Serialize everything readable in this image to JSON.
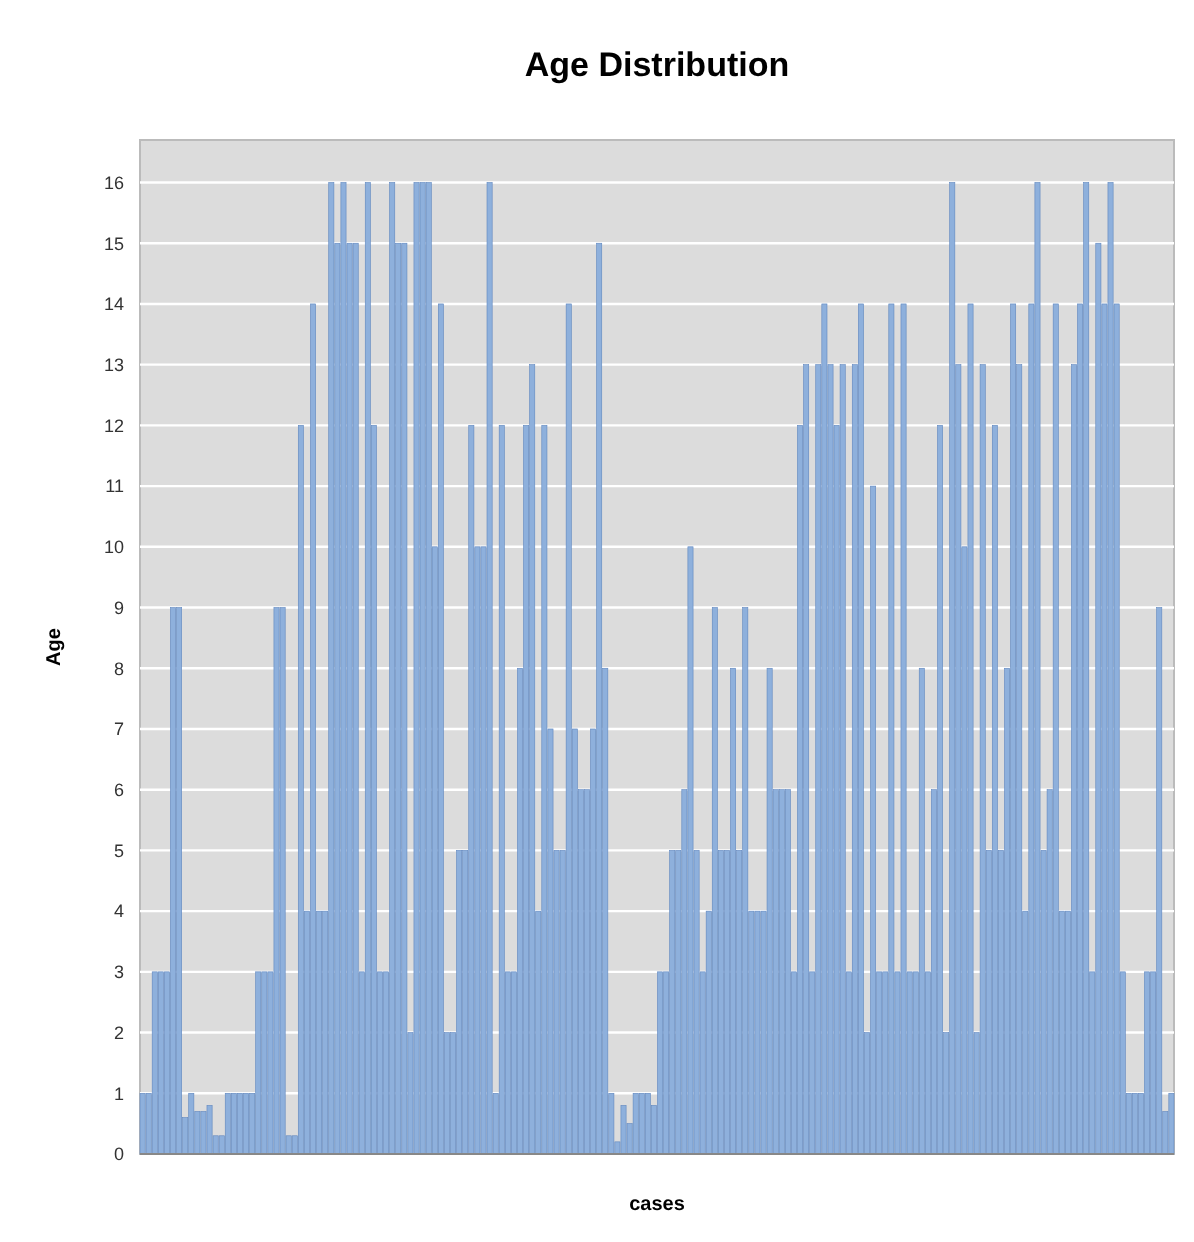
{
  "chart_data": {
    "type": "bar",
    "title": "Age Distribution",
    "xlabel": "cases",
    "ylabel": "Age",
    "categories": [
      null,
      null,
      null,
      null,
      null,
      null,
      null,
      null,
      null,
      null,
      null,
      null,
      null,
      null,
      null,
      null,
      null,
      null,
      null,
      null,
      null,
      null,
      null,
      null,
      null,
      null,
      null,
      null,
      null,
      null,
      null,
      null,
      null,
      null,
      null,
      null,
      null,
      null,
      null,
      null,
      null,
      null,
      null,
      null,
      null,
      null,
      null,
      null,
      null,
      null,
      null,
      null,
      null,
      null,
      null,
      null,
      null,
      null,
      null,
      null,
      null,
      null,
      null,
      null,
      null,
      null,
      null,
      null,
      null,
      null,
      null,
      null,
      null,
      null,
      null,
      null,
      null,
      null,
      null,
      null,
      null,
      null,
      null,
      null,
      null,
      null,
      null,
      null,
      null,
      null,
      null,
      null,
      null,
      null,
      null,
      null,
      null,
      null,
      null,
      null,
      null,
      null,
      null,
      null,
      null,
      null,
      null,
      null,
      null,
      null,
      null,
      null,
      null,
      null,
      null,
      null,
      null,
      null,
      null,
      null,
      null,
      null,
      null,
      null,
      null,
      null,
      null,
      null,
      null,
      null,
      null,
      null,
      null,
      null,
      null,
      null,
      null,
      null,
      null,
      null,
      null,
      null,
      null,
      null,
      null,
      null,
      null,
      null,
      null,
      null,
      null,
      null,
      null,
      null,
      null,
      null,
      null,
      null,
      null,
      null,
      null,
      null,
      null,
      null,
      null,
      null,
      null,
      null,
      null,
      null
    ],
    "values": [
      1,
      1,
      3,
      3,
      3,
      9,
      9,
      0.6,
      1,
      0.7,
      0.7,
      0.8,
      0.3,
      0.3,
      1,
      1,
      1,
      1,
      1,
      3,
      3,
      3,
      9,
      9,
      0.3,
      0.3,
      12,
      4,
      14,
      4,
      4,
      16,
      15,
      16,
      15,
      15,
      3,
      16,
      12,
      3,
      3,
      16,
      15,
      15,
      2,
      16,
      16,
      16,
      10,
      14,
      2,
      2,
      5,
      5,
      12,
      10,
      10,
      16,
      1,
      12,
      3,
      3,
      8,
      12,
      13,
      4,
      12,
      7,
      5,
      5,
      14,
      7,
      6,
      6,
      7,
      15,
      8,
      1,
      0.2,
      0.8,
      0.5,
      1,
      1,
      1,
      0.8,
      3,
      3,
      5,
      5,
      6,
      10,
      5,
      3,
      4,
      9,
      5,
      5,
      8,
      5,
      9,
      4,
      4,
      4,
      8,
      6,
      6,
      6,
      3,
      12,
      13,
      3,
      13,
      14,
      13,
      12,
      13,
      3,
      13,
      14,
      2,
      11,
      3,
      3,
      14,
      3,
      14,
      3,
      3,
      8,
      3,
      6,
      12,
      2,
      16,
      13,
      10,
      14,
      2,
      13,
      5,
      12,
      5,
      8,
      14,
      13,
      4,
      14,
      16,
      5,
      6,
      14,
      4,
      4,
      13,
      14,
      16,
      3,
      15,
      14,
      16,
      14,
      3,
      1,
      1,
      1,
      3,
      3,
      9,
      0.7,
      1
    ],
    "color": "#8eb0dc",
    "ylim": [
      0,
      16.7
    ],
    "yticks": [
      0,
      1,
      2,
      3,
      4,
      5,
      6,
      7,
      8,
      9,
      10,
      11,
      12,
      13,
      14,
      15,
      16
    ],
    "grid": "y"
  }
}
